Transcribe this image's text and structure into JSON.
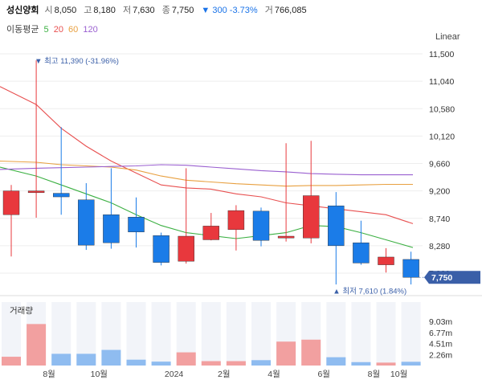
{
  "header": {
    "name": "성신양회",
    "open_label": "시",
    "open": "8,050",
    "high_label": "고",
    "high": "8,180",
    "low_label": "저",
    "low": "7,630",
    "close_label": "종",
    "close": "7,750",
    "change": "▼ 300 -3.73%",
    "volume_label": "거",
    "volume": "766,085"
  },
  "ma_legend": {
    "label": "이동평균",
    "items": [
      {
        "text": "5",
        "color": "#3cb043"
      },
      {
        "text": "20",
        "color": "#e85050"
      },
      {
        "text": "60",
        "color": "#e8a040"
      },
      {
        "text": "120",
        "color": "#9a60d0"
      }
    ]
  },
  "scale_label": "Linear",
  "volume_title": "거래량",
  "chart_data": {
    "type": "candlestick",
    "y_ticks": [
      "11,500",
      "11,040",
      "10,580",
      "10,120",
      "9,660",
      "9,200",
      "8,740",
      "8,280",
      "7,820"
    ],
    "y_range": [
      7550,
      11560
    ],
    "current_price": "7,750",
    "x_ticks": [
      "8월",
      "10월",
      "2024",
      "2월",
      "4월",
      "6월",
      "8월",
      "10월"
    ],
    "max_annotation": "▼ 최고 11,390 (-31.96%)",
    "min_annotation": "▲ 최저 7,610 (1.84%)",
    "candles": [
      {
        "o": 8800,
        "h": 9300,
        "l": 8100,
        "c": 9200
      },
      {
        "o": 9170,
        "h": 11390,
        "l": 8750,
        "c": 9200
      },
      {
        "o": 9160,
        "h": 10270,
        "l": 8800,
        "c": 9100
      },
      {
        "o": 9050,
        "h": 9330,
        "l": 8210,
        "c": 8290
      },
      {
        "o": 8800,
        "h": 9580,
        "l": 8230,
        "c": 8330
      },
      {
        "o": 8760,
        "h": 9090,
        "l": 8250,
        "c": 8510
      },
      {
        "o": 8450,
        "h": 8500,
        "l": 7950,
        "c": 8000
      },
      {
        "o": 8020,
        "h": 9580,
        "l": 7980,
        "c": 8440
      },
      {
        "o": 8380,
        "h": 8830,
        "l": 8370,
        "c": 8610
      },
      {
        "o": 8550,
        "h": 8960,
        "l": 8200,
        "c": 8870
      },
      {
        "o": 8860,
        "h": 8920,
        "l": 8270,
        "c": 8370
      },
      {
        "o": 8410,
        "h": 10000,
        "l": 8350,
        "c": 8440
      },
      {
        "o": 8410,
        "h": 10040,
        "l": 8320,
        "c": 9120
      },
      {
        "o": 8950,
        "h": 9180,
        "l": 7630,
        "c": 8280
      },
      {
        "o": 8330,
        "h": 8700,
        "l": 7960,
        "c": 7990
      },
      {
        "o": 7960,
        "h": 8240,
        "l": 7830,
        "c": 8090
      },
      {
        "o": 8050,
        "h": 8180,
        "l": 7630,
        "c": 7750
      }
    ],
    "ma": [
      {
        "period": 5,
        "color": "#3cb043",
        "values": [
          9600,
          9450,
          9300,
          9150,
          9000,
          8800,
          8620,
          8500,
          8450,
          8400,
          8450,
          8500,
          8620,
          8600,
          8500,
          8380,
          8250
        ]
      },
      {
        "period": 20,
        "color": "#e85050",
        "values": [
          10950,
          10650,
          10250,
          9950,
          9700,
          9500,
          9300,
          9250,
          9230,
          9150,
          9100,
          9000,
          8950,
          8900,
          8850,
          8800,
          8650
        ]
      },
      {
        "period": 60,
        "color": "#e8a040",
        "values": [
          9700,
          9680,
          9640,
          9620,
          9600,
          9550,
          9450,
          9380,
          9350,
          9320,
          9300,
          9280,
          9290,
          9290,
          9300,
          9310,
          9310
        ]
      },
      {
        "period": 120,
        "color": "#9a60d0",
        "values": [
          9560,
          9580,
          9590,
          9600,
          9610,
          9620,
          9640,
          9630,
          9600,
          9570,
          9540,
          9520,
          9490,
          9480,
          9470,
          9470,
          9470
        ]
      }
    ],
    "volume_ticks": [
      "9.03m",
      "6.77m",
      "4.51m",
      "2.26m"
    ],
    "volume_max": 13000000,
    "volume": [
      1800000,
      8500000,
      2400000,
      2400000,
      3200000,
      1200000,
      800000,
      2700000,
      900000,
      900000,
      1100000,
      4900000,
      5300000,
      1700000,
      700000,
      600000,
      766085
    ]
  }
}
